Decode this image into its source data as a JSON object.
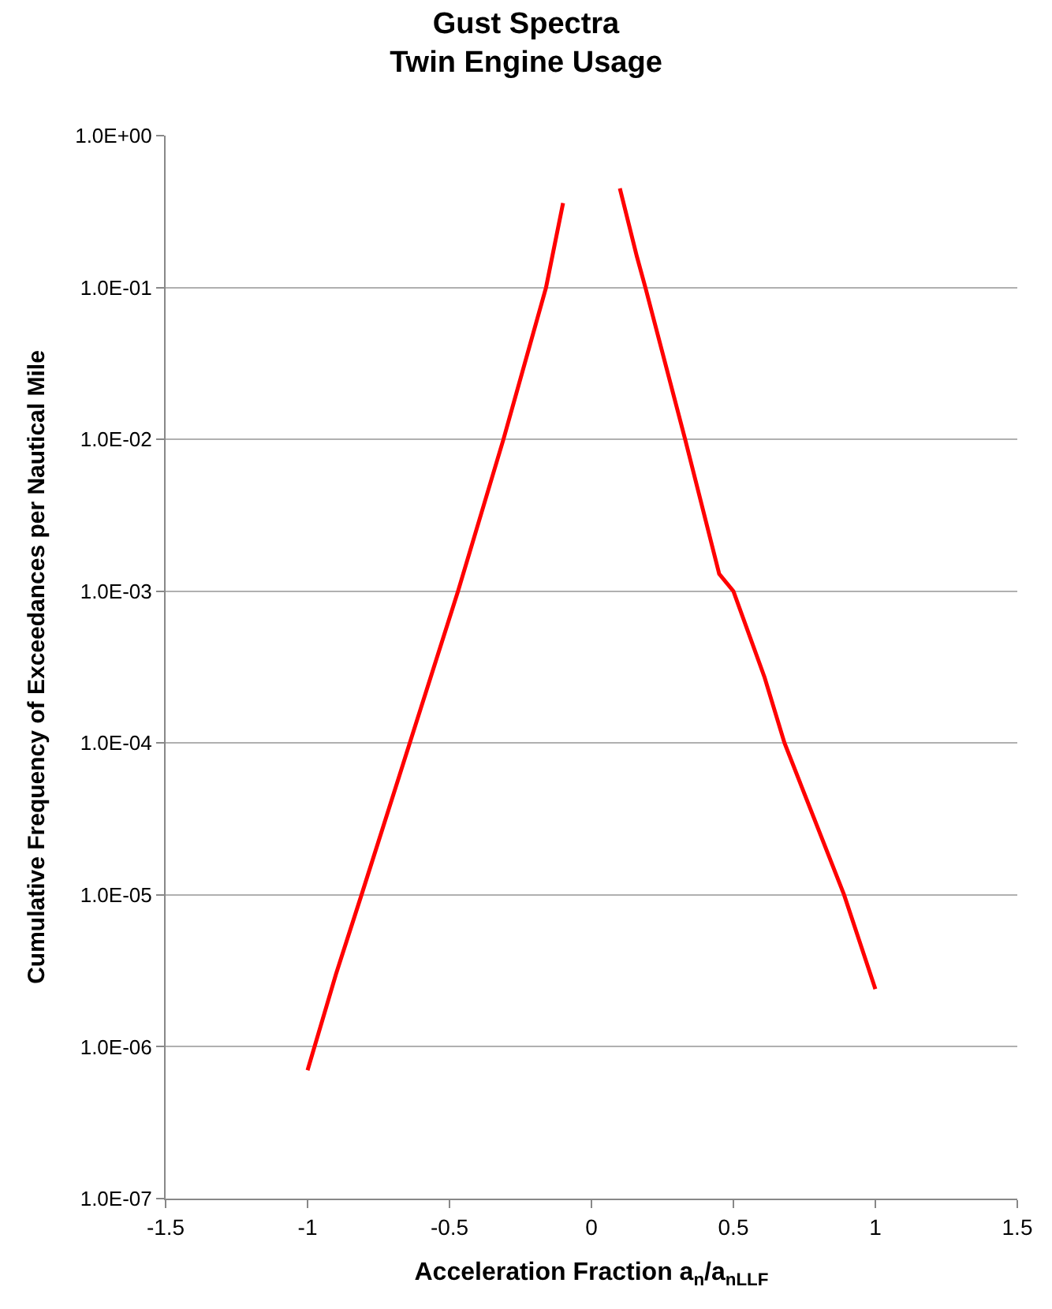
{
  "chart_data": {
    "type": "line",
    "title": "Gust Spectra\nTwin Engine Usage",
    "xlabel": "Acceleration Fraction a$_{n}$/a$_{nLLF}$",
    "ylabel": "Cumulative Frequency of Exceedances per Nautical Mile",
    "log": "y",
    "grid": "y",
    "marker": "none",
    "line_style": "solid",
    "xlim": [
      -1.5,
      1.5
    ],
    "xticks": [
      -1.5,
      -1,
      -0.5,
      0,
      0.5,
      1,
      1.5
    ],
    "ylim": [
      1e-07,
      1
    ],
    "yticks": [
      {
        "value": 1e-07,
        "label": "1.0E-07"
      },
      {
        "value": 1e-06,
        "label": "1.0E-06"
      },
      {
        "value": 1e-05,
        "label": "1.0E-05"
      },
      {
        "value": 0.0001,
        "label": "1.0E-04"
      },
      {
        "value": 0.001,
        "label": "1.0E-03"
      },
      {
        "value": 0.01,
        "label": "1.0E-02"
      },
      {
        "value": 0.1,
        "label": "1.0E-01"
      },
      {
        "value": 1,
        "label": "1.0E+00"
      }
    ],
    "series": [
      {
        "color": "#ff0000",
        "x": [
          -1.0,
          -0.9,
          -0.81,
          -0.64,
          -0.47,
          -0.31,
          -0.16,
          -0.1
        ],
        "values": [
          7e-07,
          3e-06,
          1e-05,
          0.0001,
          0.001,
          0.01,
          0.1,
          0.36
        ]
      },
      {
        "color": "#ff0000",
        "x": [
          0.1,
          0.16,
          0.19,
          0.33,
          0.45,
          0.5,
          0.61,
          0.68,
          0.89,
          1.0
        ],
        "values": [
          0.45,
          0.16,
          0.1,
          0.01,
          0.0013,
          0.001,
          0.00027,
          0.0001,
          1e-05,
          2.4e-06
        ]
      }
    ]
  }
}
